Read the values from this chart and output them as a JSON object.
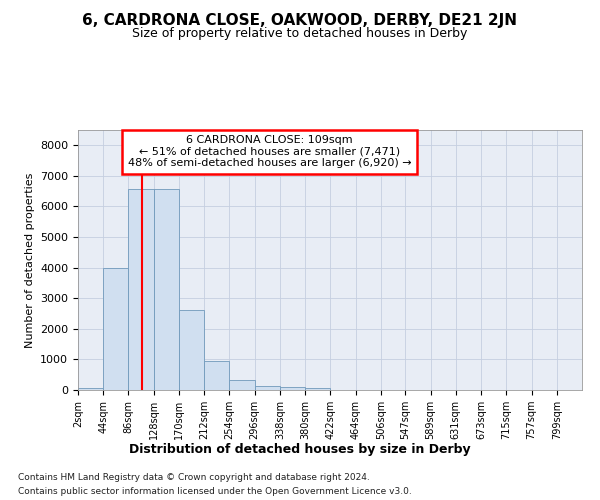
{
  "title1": "6, CARDRONA CLOSE, OAKWOOD, DERBY, DE21 2JN",
  "title2": "Size of property relative to detached houses in Derby",
  "xlabel": "Distribution of detached houses by size in Derby",
  "ylabel": "Number of detached properties",
  "footer1": "Contains HM Land Registry data © Crown copyright and database right 2024.",
  "footer2": "Contains public sector information licensed under the Open Government Licence v3.0.",
  "annotation_line1": "6 CARDRONA CLOSE: 109sqm",
  "annotation_line2": "← 51% of detached houses are smaller (7,471)",
  "annotation_line3": "48% of semi-detached houses are larger (6,920) →",
  "bar_edges": [
    2,
    44,
    86,
    128,
    170,
    212,
    254,
    296,
    338,
    380,
    422,
    464,
    506,
    547,
    589,
    631,
    673,
    715,
    757,
    799,
    841
  ],
  "bar_heights": [
    50,
    3980,
    6580,
    6580,
    2620,
    960,
    330,
    140,
    100,
    50,
    0,
    0,
    0,
    0,
    0,
    0,
    0,
    0,
    0,
    0
  ],
  "bar_color": "#d0dff0",
  "bar_edge_color": "#7099bb",
  "red_line_x": 109,
  "ylim": [
    0,
    8500
  ],
  "yticks": [
    0,
    1000,
    2000,
    3000,
    4000,
    5000,
    6000,
    7000,
    8000
  ],
  "grid_color": "#c5cfe0",
  "bg_color": "#ffffff",
  "axes_bg_color": "#e8edf5"
}
